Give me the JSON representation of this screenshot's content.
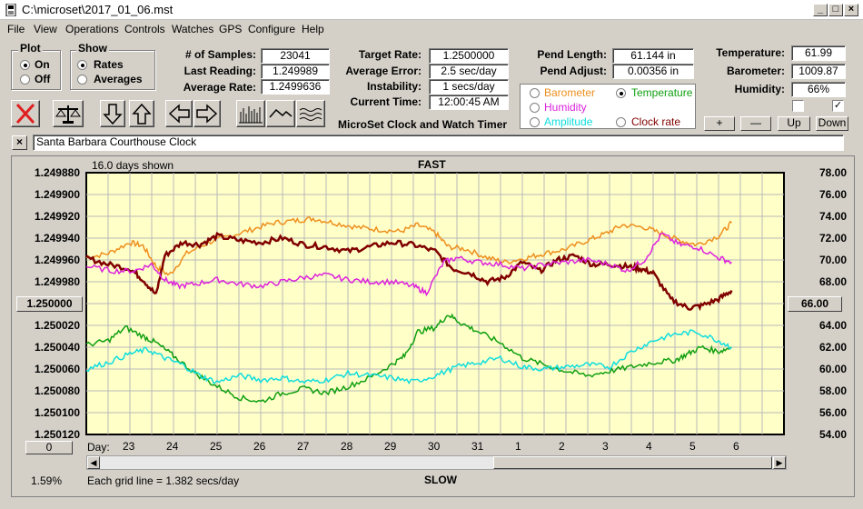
{
  "window": {
    "title": "C:\\microset\\2017_01_06.mst"
  },
  "menu": [
    "File",
    "View",
    "Operations",
    "Controls",
    "Watches",
    "GPS",
    "Configure",
    "Help"
  ],
  "plot_group": {
    "title": "Plot",
    "on": "On",
    "off": "Off",
    "selected": "On"
  },
  "show_group": {
    "title": "Show",
    "rates": "Rates",
    "averages": "Averages",
    "selected": "Rates"
  },
  "stats": {
    "samples_label": "# of Samples:",
    "samples": "23041",
    "last_reading_label": "Last Reading:",
    "last_reading": "1.249989",
    "average_rate_label": "Average Rate:",
    "average_rate": "1.2499636",
    "target_rate_label": "Target Rate:",
    "target_rate": "1.2500000",
    "average_error_label": "Average Error:",
    "average_error": "2.5 sec/day",
    "instability_label": "Instability:",
    "instability": "1 secs/day",
    "current_time_label": "Current Time:",
    "current_time": "12:00:45 AM",
    "app_caption": "MicroSet Clock and Watch Timer",
    "pend_length_label": "Pend Length:",
    "pend_length": "61.144 in",
    "pend_adjust_label": "Pend Adjust:",
    "pend_adjust": "0.00356 in",
    "temperature_label": "Temperature:",
    "temperature": "61.99",
    "barometer_label": "Barometer:",
    "barometer": "1009.87",
    "humidity_label": "Humidity:",
    "humidity": "66%"
  },
  "sensor_options": {
    "barometer": "Barometer",
    "temperature": "Temperature",
    "humidity": "Humidity",
    "amplitude": "Amplitude",
    "clock_rate": "Clock rate",
    "selected": "Temperature"
  },
  "adjust_buttons": {
    "plus": "+",
    "minus": "—",
    "up": "Up",
    "down": "Down"
  },
  "clock_name": "Santa Barbara Courthouse Clock",
  "colors": {
    "barometer": "#ee8f1e",
    "temperature": "#11a011",
    "humidity": "#dd22dd",
    "amplitude": "#11dddd",
    "clock_rate": "#800000",
    "plot_bg": "#ffffc8"
  },
  "chart_data": {
    "type": "line",
    "title": "FAST",
    "bottom_caption": "SLOW",
    "days_shown": "16.0 days shown",
    "grid_note": "Each grid line = 1.382 secs/day",
    "percent": "1.59%",
    "x_label": "Day:",
    "x_ticks": [
      "23",
      "24",
      "25",
      "26",
      "27",
      "28",
      "29",
      "30",
      "31",
      "1",
      "2",
      "3",
      "4",
      "5",
      "6"
    ],
    "left_axis": {
      "ticks": [
        "1.249880",
        "1.249900",
        "1.249920",
        "1.249940",
        "1.249960",
        "1.249980",
        "1.250000",
        "1.250020",
        "1.250040",
        "1.250060",
        "1.250080",
        "1.250100",
        "1.250120"
      ],
      "range": [
        1.24988,
        1.25012
      ],
      "center_button": "1.250000",
      "bottom_button": "0"
    },
    "right_axis": {
      "ticks": [
        "78.00",
        "76.00",
        "74.00",
        "72.00",
        "70.00",
        "68.00",
        "66.00",
        "64.00",
        "62.00",
        "60.00",
        "58.00",
        "56.00",
        "54.00"
      ],
      "range": [
        54,
        78
      ],
      "center_button": "66.00"
    },
    "x_range": [
      22.0,
      38.0
    ],
    "series": [
      {
        "key": "barometer",
        "x": [
          22.0,
          22.5,
          23.0,
          23.3,
          23.6,
          23.9,
          24.3,
          24.8,
          25.3,
          25.8,
          26.3,
          26.8,
          27.2,
          27.7,
          28.2,
          28.7,
          29.2,
          29.6,
          30.0,
          30.3,
          30.7,
          31.2,
          31.6,
          32.1,
          32.5,
          33.0,
          33.5,
          33.9,
          34.3,
          34.8,
          35.2,
          35.6,
          36.0,
          36.5,
          36.8
        ],
        "y": [
          70.2,
          70.6,
          71.6,
          71.3,
          69.4,
          68.6,
          70.6,
          71.6,
          72.2,
          72.8,
          73.4,
          73.6,
          73.8,
          73.4,
          73.0,
          72.8,
          72.6,
          73.2,
          72.5,
          71.2,
          71.0,
          70.2,
          69.8,
          70.2,
          70.6,
          71.0,
          71.8,
          72.4,
          73.2,
          73.0,
          72.4,
          71.8,
          71.4,
          72.2,
          73.4
        ]
      },
      {
        "key": "clock_rate",
        "x": [
          22.0,
          22.5,
          23.0,
          23.3,
          23.6,
          23.8,
          24.2,
          24.6,
          25.0,
          25.5,
          26.0,
          26.5,
          27.0,
          27.5,
          28.0,
          28.5,
          29.0,
          29.5,
          30.0,
          30.4,
          30.8,
          31.2,
          31.6,
          32.0,
          32.4,
          32.8,
          33.2,
          33.6,
          34.0,
          34.4,
          34.7,
          35.0,
          35.4,
          35.8,
          36.1,
          36.5,
          36.8
        ],
        "y": [
          70.2,
          69.6,
          69.2,
          68.2,
          66.8,
          70.4,
          71.6,
          71.4,
          72.2,
          71.8,
          71.6,
          72.0,
          71.4,
          71.2,
          70.8,
          71.2,
          71.6,
          71.4,
          70.8,
          69.2,
          68.8,
          68.0,
          68.4,
          69.8,
          69.0,
          70.0,
          70.4,
          69.6,
          69.6,
          69.4,
          69.2,
          68.8,
          66.4,
          65.6,
          65.8,
          66.4,
          67.2
        ]
      },
      {
        "key": "humidity",
        "x": [
          22.0,
          22.6,
          23.1,
          23.5,
          23.8,
          24.1,
          24.5,
          25.0,
          25.5,
          26.0,
          26.5,
          27.0,
          27.5,
          28.0,
          28.5,
          29.0,
          29.5,
          29.8,
          30.2,
          30.5,
          31.0,
          31.5,
          32.0,
          32.5,
          33.0,
          33.5,
          34.0,
          34.4,
          34.8,
          35.2,
          35.6,
          36.0,
          36.5,
          36.8
        ],
        "y": [
          69.4,
          69.0,
          69.0,
          69.6,
          68.2,
          67.6,
          67.8,
          68.2,
          67.8,
          67.6,
          68.0,
          68.4,
          68.6,
          68.2,
          68.0,
          68.0,
          67.6,
          67.0,
          69.8,
          70.2,
          69.8,
          69.6,
          69.2,
          69.6,
          69.8,
          70.0,
          69.6,
          69.0,
          70.0,
          72.4,
          71.4,
          71.2,
          70.2,
          69.8
        ]
      },
      {
        "key": "temperature",
        "x": [
          22.0,
          22.5,
          22.9,
          23.3,
          23.6,
          24.0,
          24.5,
          25.0,
          25.5,
          26.0,
          26.5,
          27.0,
          27.5,
          28.0,
          28.5,
          29.0,
          29.3,
          29.6,
          30.0,
          30.3,
          30.6,
          31.0,
          31.5,
          32.0,
          32.5,
          33.0,
          33.5,
          34.0,
          34.5,
          35.0,
          35.5,
          35.8,
          36.1,
          36.5,
          36.8
        ],
        "y": [
          62.2,
          62.6,
          63.8,
          63.0,
          62.4,
          61.2,
          59.6,
          58.4,
          57.4,
          57.0,
          57.8,
          58.2,
          57.8,
          58.4,
          59.2,
          60.4,
          61.2,
          63.4,
          63.8,
          65.0,
          64.2,
          63.4,
          62.4,
          61.0,
          60.4,
          59.8,
          59.4,
          59.8,
          60.2,
          60.6,
          60.8,
          61.4,
          62.0,
          61.6,
          62.0
        ]
      },
      {
        "key": "amplitude",
        "x": [
          22.0,
          22.5,
          23.0,
          23.4,
          23.8,
          24.2,
          24.6,
          25.0,
          25.5,
          26.0,
          26.5,
          27.0,
          27.5,
          28.0,
          28.5,
          29.0,
          29.5,
          30.0,
          30.5,
          31.0,
          31.5,
          32.0,
          32.5,
          33.0,
          33.5,
          34.0,
          34.5,
          35.0,
          35.5,
          36.0,
          36.5,
          36.8
        ],
        "y": [
          60.0,
          60.6,
          61.4,
          61.8,
          61.0,
          60.4,
          59.4,
          58.8,
          59.4,
          59.0,
          59.2,
          58.8,
          59.0,
          59.6,
          59.4,
          59.2,
          58.8,
          59.4,
          60.2,
          60.6,
          61.0,
          60.2,
          60.0,
          60.2,
          60.4,
          60.2,
          61.6,
          62.6,
          63.2,
          63.4,
          62.6,
          62.0
        ]
      }
    ]
  }
}
